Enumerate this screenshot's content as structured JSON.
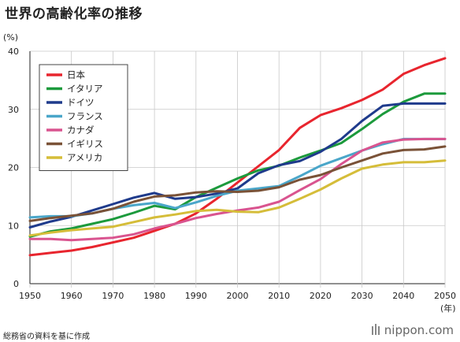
{
  "title": "世界の高齢化率の推移",
  "source": "総務省の資料を基に作成",
  "brand": "nippon.com",
  "chart_data": {
    "type": "line",
    "y_unit_label": "(%)",
    "x_unit_label": "(年)",
    "ylim": [
      0,
      40
    ],
    "y_ticks": [
      0,
      10,
      20,
      30,
      40
    ],
    "x_ticks": [
      1950,
      1960,
      1970,
      1980,
      1990,
      2000,
      2010,
      2020,
      2030,
      2040,
      2050
    ],
    "xlim": [
      1950,
      2050
    ],
    "grid": true,
    "legend_position": "top-left",
    "x": [
      1950,
      1955,
      1960,
      1965,
      1970,
      1975,
      1980,
      1985,
      1990,
      1995,
      2000,
      2005,
      2010,
      2015,
      2020,
      2025,
      2030,
      2035,
      2040,
      2045,
      2050
    ],
    "series": [
      {
        "name": "日本",
        "color": "#e8252e",
        "values": [
          4.9,
          5.3,
          5.7,
          6.3,
          7.1,
          7.9,
          9.1,
          10.3,
          12.1,
          14.6,
          17.4,
          20.2,
          23.0,
          26.8,
          29.0,
          30.2,
          31.6,
          33.4,
          36.1,
          37.6,
          38.8
        ]
      },
      {
        "name": "イタリア",
        "color": "#1c9a3c",
        "values": [
          8.1,
          9.0,
          9.5,
          10.3,
          11.1,
          12.2,
          13.4,
          12.8,
          14.9,
          16.5,
          18.1,
          19.5,
          20.3,
          21.7,
          22.9,
          24.2,
          26.6,
          29.2,
          31.3,
          32.7,
          32.7
        ]
      },
      {
        "name": "ドイツ",
        "color": "#1f3b8c",
        "values": [
          9.7,
          10.7,
          11.5,
          12.6,
          13.7,
          14.8,
          15.6,
          14.6,
          14.9,
          15.5,
          16.4,
          19.0,
          20.4,
          21.1,
          22.7,
          24.9,
          28.0,
          30.6,
          31.0,
          31.0,
          31.0
        ]
      },
      {
        "name": "フランス",
        "color": "#4aa6c9",
        "values": [
          11.4,
          11.6,
          11.6,
          12.1,
          12.9,
          13.5,
          13.9,
          13.0,
          14.0,
          15.1,
          16.0,
          16.4,
          16.8,
          18.5,
          20.3,
          21.6,
          22.9,
          24.0,
          24.9,
          24.9,
          24.9
        ]
      },
      {
        "name": "カナダ",
        "color": "#d9548f",
        "values": [
          7.7,
          7.7,
          7.5,
          7.7,
          7.9,
          8.5,
          9.5,
          10.3,
          11.3,
          12.0,
          12.6,
          13.1,
          14.1,
          16.1,
          18.0,
          20.6,
          22.9,
          24.3,
          24.8,
          24.9,
          24.9
        ]
      },
      {
        "name": "イギリス",
        "color": "#7a5237",
        "values": [
          10.8,
          11.3,
          11.7,
          12.1,
          12.9,
          14.1,
          15.0,
          15.2,
          15.7,
          15.9,
          15.8,
          16.0,
          16.6,
          17.9,
          18.7,
          20.0,
          21.2,
          22.4,
          23.0,
          23.1,
          23.6
        ]
      },
      {
        "name": "アメリカ",
        "color": "#d5bd39",
        "values": [
          8.3,
          8.8,
          9.2,
          9.5,
          9.8,
          10.6,
          11.4,
          11.9,
          12.5,
          12.7,
          12.4,
          12.3,
          13.1,
          14.6,
          16.2,
          18.1,
          19.8,
          20.5,
          20.9,
          20.9,
          21.2
        ]
      }
    ]
  }
}
